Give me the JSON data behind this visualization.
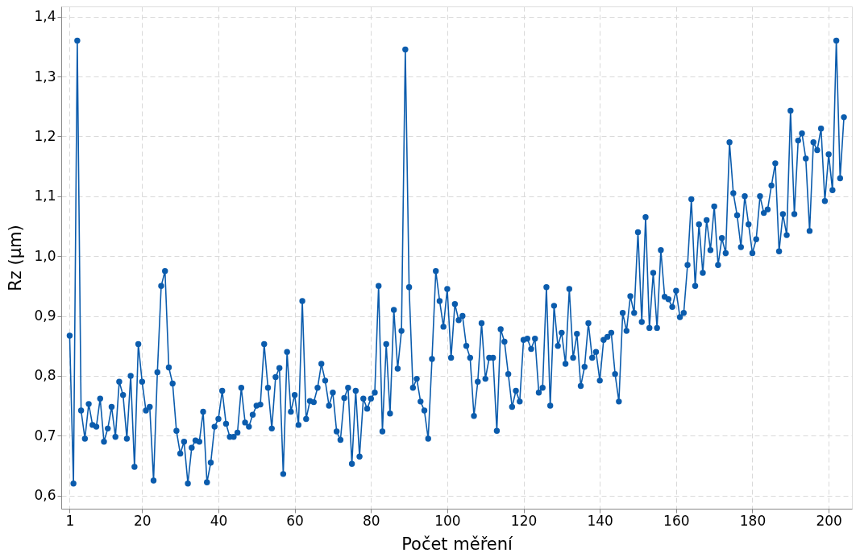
{
  "chart_data": {
    "type": "line",
    "xlabel": "Počet měření",
    "ylabel": "Rz (µm)",
    "x": [
      1,
      2,
      3,
      4,
      5,
      6,
      7,
      8,
      9,
      10,
      11,
      12,
      13,
      14,
      15,
      16,
      17,
      18,
      19,
      20,
      21,
      22,
      23,
      24,
      25,
      26,
      27,
      28,
      29,
      30,
      31,
      32,
      33,
      34,
      35,
      36,
      37,
      38,
      39,
      40,
      41,
      42,
      43,
      44,
      45,
      46,
      47,
      48,
      49,
      50,
      51,
      52,
      53,
      54,
      55,
      56,
      57,
      58,
      59,
      60,
      61,
      62,
      63,
      64,
      65,
      66,
      67,
      68,
      69,
      70,
      71,
      72,
      73,
      74,
      75,
      76,
      77,
      78,
      79,
      80,
      81,
      82,
      83,
      84,
      85,
      86,
      87,
      88,
      89,
      90,
      91,
      92,
      93,
      94,
      95,
      96,
      97,
      98,
      99,
      100,
      101,
      102,
      103,
      104,
      105,
      106,
      107,
      108,
      109,
      110,
      111,
      112,
      113,
      114,
      115,
      116,
      117,
      118,
      119,
      120,
      121,
      122,
      123,
      124,
      125,
      126,
      127,
      128,
      129,
      130,
      131,
      132,
      133,
      134,
      135,
      136,
      137,
      138,
      139,
      140,
      141,
      142,
      143,
      144,
      145,
      146,
      147,
      148,
      149,
      150,
      151,
      152,
      153,
      154,
      155,
      156,
      157,
      158,
      159,
      160,
      161,
      162,
      163,
      164,
      165,
      166,
      167,
      168,
      169,
      170,
      171,
      172,
      173,
      174,
      175,
      176,
      177,
      178,
      179,
      180,
      181,
      182,
      183,
      184,
      185,
      186,
      187,
      188,
      189,
      190,
      191,
      192,
      193,
      194,
      195,
      196,
      197,
      198,
      199,
      200,
      201,
      202,
      203,
      204
    ],
    "series": [
      {
        "color": "#0b5cad",
        "values": [
          0.867,
          0.62,
          1.36,
          0.742,
          0.695,
          0.753,
          0.718,
          0.715,
          0.762,
          0.69,
          0.712,
          0.748,
          0.698,
          0.79,
          0.768,
          0.695,
          0.8,
          0.648,
          0.853,
          0.79,
          0.742,
          0.748,
          0.625,
          0.806,
          0.95,
          0.975,
          0.814,
          0.787,
          0.708,
          0.67,
          0.69,
          0.62,
          0.68,
          0.692,
          0.69,
          0.74,
          0.622,
          0.655,
          0.715,
          0.728,
          0.775,
          0.72,
          0.698,
          0.698,
          0.705,
          0.78,
          0.722,
          0.715,
          0.735,
          0.75,
          0.752,
          0.853,
          0.78,
          0.712,
          0.798,
          0.813,
          0.636,
          0.84,
          0.74,
          0.768,
          0.718,
          0.925,
          0.728,
          0.758,
          0.756,
          0.78,
          0.82,
          0.792,
          0.75,
          0.772,
          0.707,
          0.693,
          0.763,
          0.78,
          0.653,
          0.775,
          0.665,
          0.762,
          0.745,
          0.762,
          0.772,
          0.95,
          0.707,
          0.853,
          0.737,
          0.91,
          0.812,
          0.875,
          1.345,
          0.948,
          0.78,
          0.795,
          0.757,
          0.742,
          0.695,
          0.828,
          0.975,
          0.925,
          0.882,
          0.945,
          0.83,
          0.92,
          0.893,
          0.9,
          0.85,
          0.83,
          0.733,
          0.79,
          0.888,
          0.795,
          0.83,
          0.83,
          0.708,
          0.878,
          0.857,
          0.803,
          0.748,
          0.775,
          0.757,
          0.86,
          0.862,
          0.845,
          0.862,
          0.772,
          0.78,
          0.948,
          0.75,
          0.917,
          0.85,
          0.872,
          0.82,
          0.945,
          0.83,
          0.87,
          0.783,
          0.815,
          0.888,
          0.83,
          0.84,
          0.792,
          0.86,
          0.865,
          0.872,
          0.803,
          0.757,
          0.905,
          0.875,
          0.933,
          0.905,
          1.04,
          0.89,
          1.065,
          0.88,
          0.972,
          0.88,
          1.01,
          0.932,
          0.928,
          0.915,
          0.942,
          0.898,
          0.905,
          0.985,
          1.095,
          0.95,
          1.053,
          0.972,
          1.06,
          1.01,
          1.083,
          0.985,
          1.03,
          1.005,
          1.19,
          1.105,
          1.068,
          1.015,
          1.1,
          1.053,
          1.005,
          1.028,
          1.1,
          1.072,
          1.078,
          1.118,
          1.155,
          1.008,
          1.07,
          1.035,
          1.243,
          1.07,
          1.193,
          1.205,
          1.163,
          1.042,
          1.19,
          1.177,
          1.213,
          1.092,
          1.17,
          1.11,
          1.36,
          1.13,
          1.232
        ]
      }
    ],
    "xlim": [
      -1.2,
      206.1
    ],
    "ylim": [
      0.578,
      1.417
    ],
    "xticks": [
      1,
      20,
      40,
      60,
      80,
      100,
      120,
      140,
      160,
      180,
      200
    ],
    "yticks": [
      {
        "value": 0.6,
        "label": "0,6"
      },
      {
        "value": 0.7,
        "label": "0,7"
      },
      {
        "value": 0.8,
        "label": "0,8"
      },
      {
        "value": 0.9,
        "label": "0,9"
      },
      {
        "value": 1.0,
        "label": "1,0"
      },
      {
        "value": 1.1,
        "label": "1,1"
      },
      {
        "value": 1.2,
        "label": "1,2"
      },
      {
        "value": 1.3,
        "label": "1,3"
      },
      {
        "value": 1.4,
        "label": "1,4"
      }
    ],
    "grid": true,
    "marker": "circle",
    "line_style": "solid"
  }
}
